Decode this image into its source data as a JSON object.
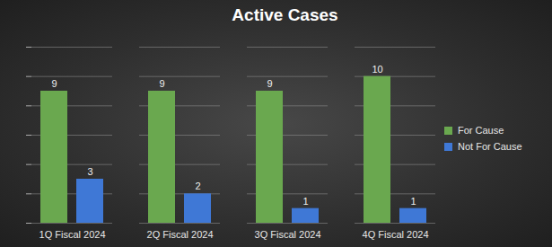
{
  "chart_data": {
    "type": "bar",
    "title": "Active Cases",
    "categories": [
      "1Q Fiscal 2024",
      "2Q Fiscal 2024",
      "3Q Fiscal 2024",
      "4Q Fiscal 2024"
    ],
    "series": [
      {
        "name": "For Cause",
        "color": "#6aa84f",
        "values": [
          9,
          9,
          9,
          10
        ]
      },
      {
        "name": "Not For Cause",
        "color": "#3f78d6",
        "values": [
          3,
          2,
          1,
          1
        ]
      }
    ],
    "ylim": [
      0,
      12
    ],
    "yticks": [
      0,
      2,
      4,
      6,
      8,
      10,
      12
    ],
    "grid": true,
    "data_labels": true,
    "legend": "right",
    "tick_labels": "x"
  }
}
